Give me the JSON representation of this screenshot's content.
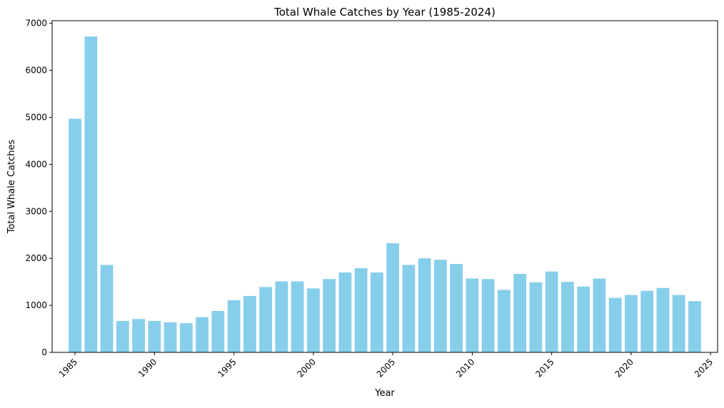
{
  "chart_data": {
    "type": "bar",
    "title": "Total Whale Catches by Year (1985-2024)",
    "xlabel": "Year",
    "ylabel": "Total Whale Catches",
    "x": [
      1985,
      1986,
      1987,
      1988,
      1989,
      1990,
      1991,
      1992,
      1993,
      1994,
      1995,
      1996,
      1997,
      1998,
      1999,
      2000,
      2001,
      2002,
      2003,
      2004,
      2005,
      2006,
      2007,
      2008,
      2009,
      2010,
      2011,
      2012,
      2013,
      2014,
      2015,
      2016,
      2017,
      2018,
      2019,
      2020,
      2021,
      2022,
      2023,
      2024
    ],
    "values": [
      4970,
      6720,
      1860,
      670,
      710,
      670,
      640,
      620,
      750,
      880,
      1110,
      1200,
      1390,
      1510,
      1510,
      1360,
      1560,
      1700,
      1790,
      1700,
      2320,
      1860,
      2000,
      1970,
      1880,
      1570,
      1560,
      1330,
      1670,
      1490,
      1720,
      1500,
      1400,
      1570,
      1160,
      1220,
      1310,
      1370,
      1220,
      1090
    ],
    "xlim": [
      1983.56,
      2025.44
    ],
    "ylim": [
      0,
      7056
    ],
    "xticks": [
      "1985",
      "1990",
      "1995",
      "2000",
      "2005",
      "2010",
      "2015",
      "2020",
      "2025"
    ],
    "yticks": [
      "0",
      "1000",
      "2000",
      "3000",
      "4000",
      "5000",
      "6000",
      "7000"
    ],
    "bar_color": "#87CEEB",
    "grid": false,
    "legend": "none"
  }
}
